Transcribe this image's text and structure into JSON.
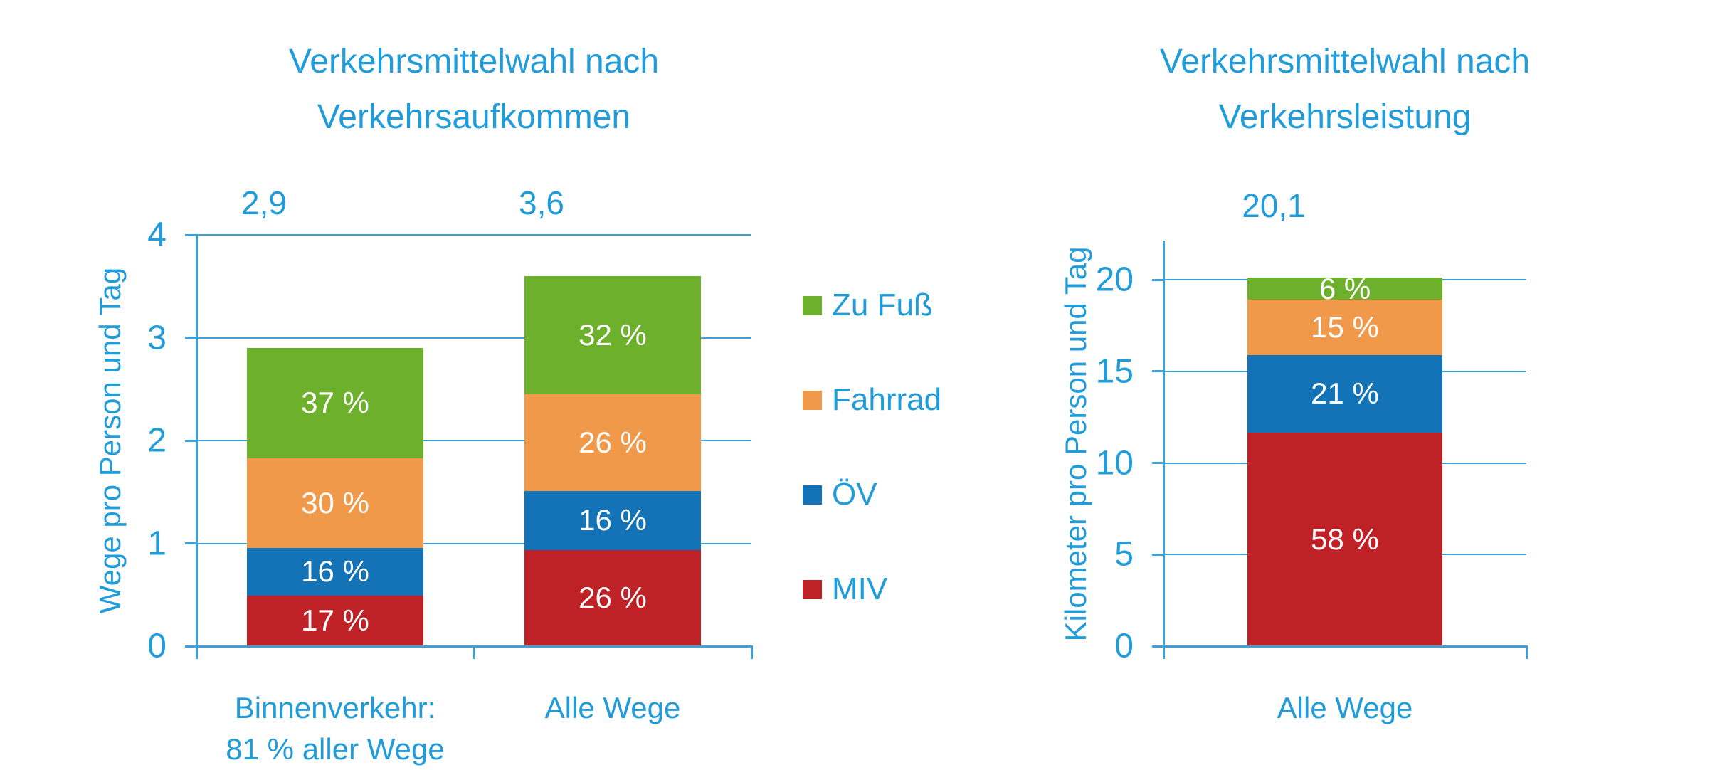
{
  "colors": {
    "text_blue": "#1F9CD9",
    "line_blue": "#3BA1D8",
    "segment_label": "#ffffff",
    "zu_fuss_green": "#6CB02B",
    "fahrrad_orange": "#F0994B",
    "oev_blue": "#1472B7",
    "miv_red": "#BE2126"
  },
  "legend": {
    "items": [
      {
        "label": "Zu Fuß",
        "color": "#6CB02B"
      },
      {
        "label": "Fahrrad",
        "color": "#F0994B"
      },
      {
        "label": "ÖV",
        "color": "#1472B7"
      },
      {
        "label": "MIV",
        "color": "#BE2126"
      }
    ]
  },
  "chart_data": [
    {
      "type": "bar",
      "stacked": true,
      "title": "Verkehrsmittelwahl nach Verkehrsaufkommen",
      "title_lines": [
        "Verkehrsmittelwahl nach",
        "Verkehrsaufkommen"
      ],
      "ylabel": "Wege pro Person und Tag",
      "ylim": [
        0,
        4
      ],
      "yticks": [
        0,
        1,
        2,
        3,
        4
      ],
      "ytick_labels": [
        "0",
        "1",
        "2",
        "3",
        "4"
      ],
      "grid": true,
      "legend_position": "right",
      "categories": [
        "Binnenverkehr: 81 % aller Wege",
        "Alle Wege"
      ],
      "category_label_lines": [
        [
          "Binnenverkehr:",
          "81 % aller Wege"
        ],
        [
          "Alle Wege"
        ]
      ],
      "totals": [
        2.9,
        3.6
      ],
      "total_labels": [
        "2,9",
        "3,6"
      ],
      "series": [
        {
          "name": "MIV",
          "color": "#BE2126",
          "pct": [
            17,
            26
          ],
          "labels": [
            "17 %",
            "26 %"
          ]
        },
        {
          "name": "ÖV",
          "color": "#1472B7",
          "pct": [
            16,
            16
          ],
          "labels": [
            "16 %",
            "16 %"
          ]
        },
        {
          "name": "Fahrrad",
          "color": "#F0994B",
          "pct": [
            30,
            26
          ],
          "labels": [
            "30 %",
            "26 %"
          ]
        },
        {
          "name": "Zu Fuß",
          "color": "#6CB02B",
          "pct": [
            37,
            32
          ],
          "labels": [
            "37 %",
            "32 %"
          ]
        }
      ]
    },
    {
      "type": "bar",
      "stacked": true,
      "title": "Verkehrsmittelwahl nach Verkehrsleistung",
      "title_lines": [
        "Verkehrsmittelwahl nach",
        "Verkehrsleistung"
      ],
      "ylabel": "Kilometer pro Person und Tag",
      "ylim": [
        0,
        20
      ],
      "yticks": [
        0,
        5,
        10,
        15,
        20
      ],
      "ytick_labels": [
        "0",
        "5",
        "10",
        "15",
        "20"
      ],
      "grid": true,
      "legend_position": "none",
      "categories": [
        "Alle Wege"
      ],
      "category_label_lines": [
        [
          "Alle Wege"
        ]
      ],
      "totals": [
        20.1
      ],
      "total_labels": [
        "20,1"
      ],
      "series": [
        {
          "name": "MIV",
          "color": "#BE2126",
          "pct": [
            58
          ],
          "labels": [
            "58 %"
          ]
        },
        {
          "name": "ÖV",
          "color": "#1472B7",
          "pct": [
            21
          ],
          "labels": [
            "21 %"
          ]
        },
        {
          "name": "Fahrrad",
          "color": "#F0994B",
          "pct": [
            15
          ],
          "labels": [
            "15 %"
          ]
        },
        {
          "name": "Zu Fuß",
          "color": "#6CB02B",
          "pct": [
            6
          ],
          "labels": [
            "6 %"
          ]
        }
      ]
    }
  ]
}
